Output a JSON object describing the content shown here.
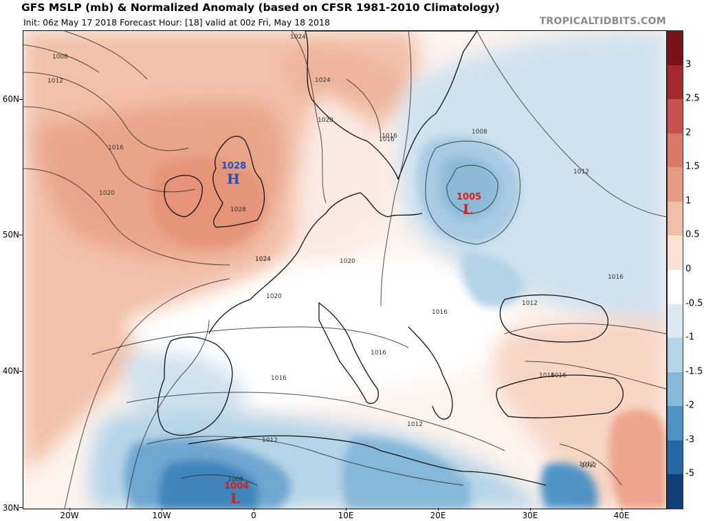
{
  "header": {
    "title": "GFS MSLP (mb) & Normalized Anomaly (based on CFSR 1981-2010 Climatology)",
    "subtitle": "Init: 06z May 17 2018   Forecast Hour: [18]   valid at 00z Fri, May 18 2018",
    "brand": "TROPICALTIDBITS.COM"
  },
  "axes": {
    "lat_labels": [
      "60N",
      "50N",
      "40N",
      "30N"
    ],
    "lon_labels": [
      "20W",
      "10W",
      "0",
      "10E",
      "20E",
      "30E",
      "40E"
    ]
  },
  "colorbar": {
    "labels": [
      "3",
      "2.5",
      "2",
      "1.5",
      "1",
      "0.5",
      "0",
      "-0.5",
      "-1",
      "-1.5",
      "-2",
      "-3",
      "-5"
    ],
    "colors": [
      "#7a1418",
      "#a52a2e",
      "#c9524f",
      "#d97a66",
      "#e89b82",
      "#f3bea8",
      "#fbe1d4",
      "#ffffff",
      "#dbe9f3",
      "#b6d4e8",
      "#86b8d9",
      "#4f93c4",
      "#2468a8",
      "#123f7a"
    ]
  },
  "pressure_centers": [
    {
      "type": "H",
      "value": "1028",
      "color": "#1f4fc1"
    },
    {
      "type": "L",
      "value": "1005",
      "color": "#d0201f"
    },
    {
      "type": "L",
      "value": "1004",
      "color": "#d0201f"
    }
  ],
  "isobar_labels": [
    "1008",
    "1012",
    "1016",
    "1020",
    "1024",
    "1024",
    "1020",
    "1016",
    "1012",
    "1016",
    "1012",
    "1024",
    "1020",
    "1020",
    "1016",
    "1016",
    "1016",
    "1012",
    "1016",
    "1012",
    "1012",
    "1008",
    "1016",
    "1012",
    "1008",
    "1028",
    "1024",
    "1016"
  ]
}
